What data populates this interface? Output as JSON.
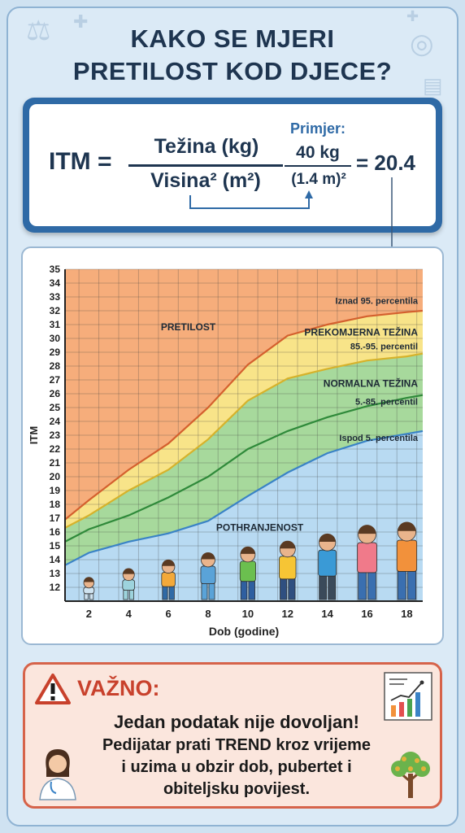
{
  "title": {
    "line1": "KAKO SE MJERI",
    "line2": "PRETILOST KOD DJECE?"
  },
  "formula": {
    "lhs": "ITM =",
    "numerator": "Težina (kg)",
    "denominator": "Visina² (m²)",
    "example_label": "Primjer:",
    "example_numerator": "40 kg",
    "example_denominator": "(1.4 m)²",
    "result": "= 20.4"
  },
  "chart_data": {
    "type": "area",
    "xlabel": "Dob (godine)",
    "ylabel": "ITM",
    "x_ticks": [
      2,
      4,
      6,
      8,
      10,
      12,
      14,
      16,
      18
    ],
    "y_ticks": [
      12,
      13,
      14,
      15,
      16,
      17,
      18,
      19,
      20,
      21,
      22,
      23,
      24,
      25,
      26,
      27,
      28,
      29,
      30,
      31,
      32,
      33,
      34,
      35
    ],
    "xlim": [
      0.8,
      18.8
    ],
    "ylim": [
      11,
      35
    ],
    "grid": true,
    "x": [
      0.8,
      2,
      4,
      6,
      8,
      10,
      12,
      14,
      16,
      18,
      18.8
    ],
    "series": [
      {
        "name": "Ispod 5. percentila",
        "values": [
          13.6,
          14.5,
          15.3,
          15.9,
          16.8,
          18.6,
          20.3,
          21.7,
          22.6,
          23.1,
          23.3
        ]
      },
      {
        "name": "5.-85. percentil",
        "values": [
          15.3,
          16.2,
          17.2,
          18.5,
          20.0,
          22.0,
          23.3,
          24.3,
          25.1,
          25.7,
          25.9
        ]
      },
      {
        "name": "85.-95. percentil",
        "values": [
          16.3,
          17.2,
          19.0,
          20.5,
          22.7,
          25.5,
          27.1,
          27.8,
          28.4,
          28.7,
          28.9
        ]
      },
      {
        "name": "Iznad 95. percentila",
        "values": [
          16.9,
          18.3,
          20.5,
          22.4,
          25.0,
          28.1,
          30.2,
          31.0,
          31.6,
          31.9,
          32.0
        ]
      }
    ],
    "zone_labels": {
      "obese": "PRETILOST",
      "above95": "Iznad 95. percentila",
      "overweight": "PREKOMJERNA TEŽINA",
      "p85_95": "85.-95. percentil",
      "normal": "NORMALNA TEŽINA",
      "p5_85": "5.-85. percentil",
      "below5": "Ispod 5. percentila",
      "underweight": "POTHRANJENOST"
    },
    "colors": {
      "obese": "#f6ad7b",
      "overweight": "#f8e489",
      "normal": "#a7d99c",
      "underweight": "#b8daf2",
      "line95": "#d4602e",
      "line85": "#d6b22b",
      "line5_85": "#2f8a3a",
      "line5": "#3a83c6"
    }
  },
  "warning": {
    "heading": "VAŽNO:",
    "line1": "Jedan podatak nije dovoljan!",
    "line2": "Pedijatar prati TREND kroz vrijeme",
    "line3": "i uzima u obzir dob, pubertet i",
    "line4": "obiteljsku povijest."
  }
}
